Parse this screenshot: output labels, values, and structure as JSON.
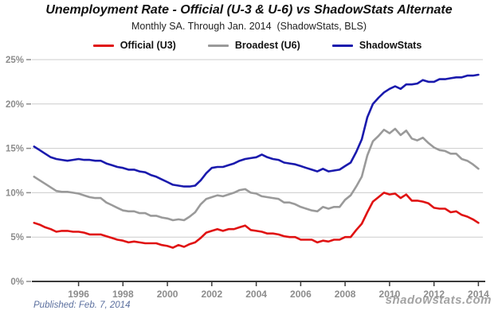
{
  "footer": {
    "published": "Published: Feb. 7, 2014",
    "watermark": "shadowstats.com"
  },
  "colors": {
    "official_u3": "#e01212",
    "broadest_u6": "#9a9a9a",
    "shadowstats": "#1a1aad",
    "grid": "#cccccc",
    "axis": "#3a3a3a",
    "tick_labels": "#8c8c8c",
    "title": "#111111",
    "published": "#5b6f9e",
    "watermark": "#a3a3a3",
    "background": "#ffffff"
  },
  "chart_data": {
    "type": "line",
    "title": "Unemployment Rate - Official (U-3 & U-6) vs ShadowStats Alternate",
    "subtitle": "Monthly SA. Through Jan. 2014  (ShadowStats, BLS)",
    "xlabel": "",
    "ylabel": "",
    "x_unit": "year (monthly seasonally-adjusted data, quarterly sampled)",
    "xlim": [
      1993.9,
      2014.2
    ],
    "ylim": [
      0,
      25
    ],
    "yticks": [
      0,
      5,
      10,
      15,
      20,
      25
    ],
    "ytick_labels": [
      "0%",
      "5%",
      "10%",
      "15%",
      "20%",
      "25%"
    ],
    "xticks": [
      1996,
      1998,
      2000,
      2002,
      2004,
      2006,
      2008,
      2010,
      2012,
      2014
    ],
    "grid": "horizontal-only",
    "legend_position": "top-center",
    "x": [
      1994.0,
      1994.25,
      1994.5,
      1994.75,
      1995.0,
      1995.25,
      1995.5,
      1995.75,
      1996.0,
      1996.25,
      1996.5,
      1996.75,
      1997.0,
      1997.25,
      1997.5,
      1997.75,
      1998.0,
      1998.25,
      1998.5,
      1998.75,
      1999.0,
      1999.25,
      1999.5,
      1999.75,
      2000.0,
      2000.25,
      2000.5,
      2000.75,
      2001.0,
      2001.25,
      2001.5,
      2001.75,
      2002.0,
      2002.25,
      2002.5,
      2002.75,
      2003.0,
      2003.25,
      2003.5,
      2003.75,
      2004.0,
      2004.25,
      2004.5,
      2004.75,
      2005.0,
      2005.25,
      2005.5,
      2005.75,
      2006.0,
      2006.25,
      2006.5,
      2006.75,
      2007.0,
      2007.25,
      2007.5,
      2007.75,
      2008.0,
      2008.25,
      2008.5,
      2008.75,
      2009.0,
      2009.25,
      2009.5,
      2009.75,
      2010.0,
      2010.25,
      2010.5,
      2010.75,
      2011.0,
      2011.25,
      2011.5,
      2011.75,
      2012.0,
      2012.25,
      2012.5,
      2012.75,
      2013.0,
      2013.25,
      2013.5,
      2013.75,
      2014.0
    ],
    "series": [
      {
        "name": "Official (U3)",
        "color": "#e01212",
        "values": [
          6.6,
          6.4,
          6.1,
          5.9,
          5.6,
          5.7,
          5.7,
          5.6,
          5.6,
          5.5,
          5.3,
          5.3,
          5.3,
          5.1,
          4.9,
          4.7,
          4.6,
          4.4,
          4.5,
          4.4,
          4.3,
          4.3,
          4.3,
          4.1,
          4.0,
          3.8,
          4.1,
          3.9,
          4.2,
          4.4,
          4.9,
          5.5,
          5.7,
          5.9,
          5.7,
          5.9,
          5.9,
          6.1,
          6.3,
          5.8,
          5.7,
          5.6,
          5.4,
          5.4,
          5.3,
          5.1,
          5.0,
          5.0,
          4.7,
          4.7,
          4.7,
          4.4,
          4.6,
          4.5,
          4.7,
          4.7,
          5.0,
          5.0,
          5.8,
          6.5,
          7.8,
          9.0,
          9.5,
          10.0,
          9.8,
          9.9,
          9.4,
          9.8,
          9.1,
          9.1,
          9.0,
          8.8,
          8.3,
          8.2,
          8.2,
          7.8,
          7.9,
          7.5,
          7.3,
          7.0,
          6.6
        ]
      },
      {
        "name": "Broadest (U6)",
        "color": "#9a9a9a",
        "values": [
          11.8,
          11.4,
          11.0,
          10.6,
          10.2,
          10.1,
          10.1,
          10.0,
          9.9,
          9.7,
          9.5,
          9.4,
          9.4,
          8.9,
          8.6,
          8.3,
          8.0,
          7.9,
          7.9,
          7.7,
          7.7,
          7.4,
          7.4,
          7.2,
          7.1,
          6.9,
          7.0,
          6.9,
          7.3,
          7.8,
          8.7,
          9.3,
          9.5,
          9.7,
          9.6,
          9.8,
          10.0,
          10.3,
          10.4,
          10.0,
          9.9,
          9.6,
          9.5,
          9.4,
          9.3,
          8.9,
          8.9,
          8.7,
          8.4,
          8.2,
          8.0,
          7.9,
          8.4,
          8.2,
          8.4,
          8.4,
          9.2,
          9.7,
          10.7,
          11.8,
          14.2,
          15.8,
          16.4,
          17.1,
          16.7,
          17.2,
          16.5,
          17.0,
          16.1,
          15.9,
          16.2,
          15.6,
          15.1,
          14.8,
          14.7,
          14.4,
          14.4,
          13.8,
          13.6,
          13.2,
          12.7
        ]
      },
      {
        "name": "ShadowStats",
        "color": "#1a1aad",
        "values": [
          15.2,
          14.8,
          14.4,
          14.0,
          13.8,
          13.7,
          13.6,
          13.7,
          13.8,
          13.7,
          13.7,
          13.6,
          13.6,
          13.3,
          13.1,
          12.9,
          12.8,
          12.6,
          12.6,
          12.4,
          12.3,
          12.0,
          11.8,
          11.5,
          11.2,
          10.9,
          10.8,
          10.7,
          10.7,
          10.8,
          11.4,
          12.2,
          12.8,
          12.9,
          12.9,
          13.1,
          13.3,
          13.6,
          13.8,
          13.9,
          14.0,
          14.3,
          14.0,
          13.8,
          13.7,
          13.4,
          13.3,
          13.2,
          13.0,
          12.8,
          12.6,
          12.4,
          12.7,
          12.4,
          12.5,
          12.6,
          13.0,
          13.4,
          14.6,
          16.0,
          18.5,
          20.0,
          20.7,
          21.3,
          21.7,
          22.0,
          21.7,
          22.2,
          22.2,
          22.3,
          22.7,
          22.5,
          22.5,
          22.8,
          22.8,
          22.9,
          23.0,
          23.0,
          23.2,
          23.2,
          23.3
        ]
      }
    ]
  }
}
